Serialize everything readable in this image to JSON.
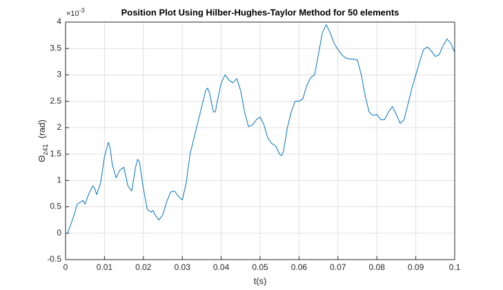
{
  "chart_data": {
    "type": "line",
    "title": "Position Plot Using Hilber-Hughes-Taylor Method for 50 elements",
    "xlabel": "t(s)",
    "ylabel": {
      "symbol": "Θ",
      "subscript": "z41",
      "unit": "(rad)"
    },
    "y_exponent": {
      "base": "×10",
      "power": "-3"
    },
    "x": [
      0,
      0.0005,
      0.001,
      0.002,
      0.003,
      0.004,
      0.0045,
      0.005,
      0.006,
      0.007,
      0.0075,
      0.008,
      0.009,
      0.01,
      0.011,
      0.0115,
      0.012,
      0.013,
      0.014,
      0.015,
      0.016,
      0.017,
      0.018,
      0.0185,
      0.019,
      0.02,
      0.021,
      0.022,
      0.0225,
      0.023,
      0.024,
      0.025,
      0.026,
      0.027,
      0.028,
      0.029,
      0.03,
      0.031,
      0.032,
      0.033,
      0.034,
      0.035,
      0.036,
      0.0365,
      0.037,
      0.038,
      0.0385,
      0.039,
      0.04,
      0.041,
      0.042,
      0.043,
      0.044,
      0.045,
      0.046,
      0.047,
      0.048,
      0.049,
      0.05,
      0.051,
      0.052,
      0.053,
      0.054,
      0.055,
      0.0555,
      0.056,
      0.057,
      0.058,
      0.059,
      0.06,
      0.061,
      0.062,
      0.063,
      0.064,
      0.065,
      0.066,
      0.067,
      0.068,
      0.069,
      0.07,
      0.071,
      0.072,
      0.073,
      0.074,
      0.075,
      0.076,
      0.077,
      0.078,
      0.079,
      0.08,
      0.081,
      0.082,
      0.083,
      0.084,
      0.085,
      0.086,
      0.087,
      0.088,
      0.089,
      0.09,
      0.091,
      0.092,
      0.093,
      0.094,
      0.095,
      0.096,
      0.097,
      0.098,
      0.099,
      0.1
    ],
    "series": [
      {
        "color": "#0072bd",
        "values": [
          0,
          0,
          0.1,
          0.3,
          0.55,
          0.6,
          0.62,
          0.55,
          0.75,
          0.9,
          0.85,
          0.73,
          0.95,
          1.45,
          1.72,
          1.6,
          1.3,
          1.05,
          1.2,
          1.25,
          0.9,
          0.8,
          1.25,
          1.4,
          1.35,
          0.85,
          0.45,
          0.4,
          0.43,
          0.35,
          0.25,
          0.35,
          0.6,
          0.78,
          0.8,
          0.7,
          0.63,
          0.95,
          1.5,
          1.8,
          2.1,
          2.4,
          2.7,
          2.75,
          2.65,
          2.3,
          2.3,
          2.5,
          2.85,
          3.0,
          2.9,
          2.85,
          2.93,
          2.7,
          2.3,
          2.02,
          2.05,
          2.15,
          2.2,
          2.05,
          1.8,
          1.7,
          1.65,
          1.5,
          1.47,
          1.55,
          2.0,
          2.3,
          2.5,
          2.5,
          2.55,
          2.8,
          2.95,
          3.0,
          3.4,
          3.8,
          3.95,
          3.8,
          3.6,
          3.48,
          3.38,
          3.32,
          3.3,
          3.3,
          3.28,
          3.0,
          2.6,
          2.3,
          2.23,
          2.25,
          2.15,
          2.15,
          2.3,
          2.4,
          2.25,
          2.08,
          2.15,
          2.45,
          2.75,
          3.0,
          3.25,
          3.48,
          3.53,
          3.45,
          3.35,
          3.38,
          3.55,
          3.68,
          3.6,
          3.42
        ]
      }
    ],
    "xlim": [
      0,
      0.1
    ],
    "xticks": [
      0,
      0.01,
      0.02,
      0.03,
      0.04,
      0.05,
      0.06,
      0.07,
      0.08,
      0.09,
      0.1
    ],
    "ylim": [
      -0.5,
      4
    ],
    "yticks": [
      -0.5,
      0,
      0.5,
      1,
      1.5,
      2,
      2.5,
      3,
      3.5,
      4
    ],
    "grid": true
  }
}
